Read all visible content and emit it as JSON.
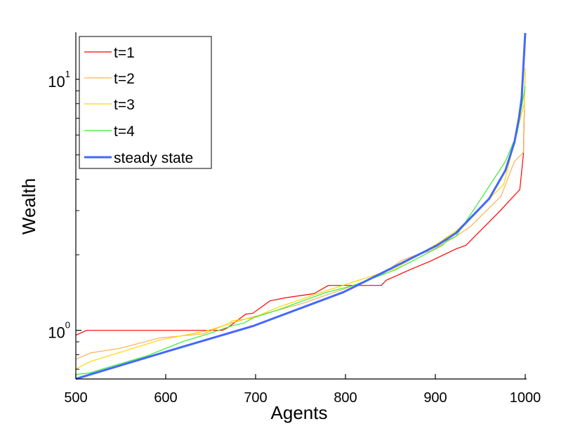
{
  "chart_data": {
    "type": "line",
    "title": "",
    "xlabel": "Agents",
    "ylabel": "Wealth",
    "xlim": [
      500,
      1000
    ],
    "ylim": [
      0.64,
      15.4
    ],
    "yscale": "log",
    "grid": false,
    "legend_position": "top-left",
    "x_ticks": [
      500,
      600,
      700,
      800,
      900,
      1000
    ],
    "x_tick_labels": [
      "500",
      "600",
      "700",
      "800",
      "900",
      "1000"
    ],
    "y_major_ticks": [
      {
        "value": 1,
        "base": "10",
        "exp": "0"
      },
      {
        "value": 10,
        "base": "10",
        "exp": "1"
      }
    ],
    "y_minor_ticks": [
      0.7,
      0.8,
      0.9,
      2,
      3,
      4,
      5,
      6,
      7,
      8,
      9
    ],
    "series": [
      {
        "name": "t=1",
        "color": "#ff0000",
        "width": 1.2,
        "points": [
          [
            500,
            0.956
          ],
          [
            512,
            1.0
          ],
          [
            663,
            1.0
          ],
          [
            668,
            1.02
          ],
          [
            673,
            1.05
          ],
          [
            689,
            1.16
          ],
          [
            697,
            1.17
          ],
          [
            716,
            1.31
          ],
          [
            734,
            1.35
          ],
          [
            765,
            1.4
          ],
          [
            781,
            1.51
          ],
          [
            840,
            1.51
          ],
          [
            845,
            1.58
          ],
          [
            871,
            1.74
          ],
          [
            895,
            1.89
          ],
          [
            923,
            2.11
          ],
          [
            934,
            2.18
          ],
          [
            970,
            2.94
          ],
          [
            994,
            3.64
          ],
          [
            998,
            5.02
          ],
          [
            999,
            7.53
          ]
        ]
      },
      {
        "name": "t=2",
        "color": "#ffb050",
        "width": 1.2,
        "points": [
          [
            500,
            0.768
          ],
          [
            517,
            0.814
          ],
          [
            548,
            0.846
          ],
          [
            593,
            0.932
          ],
          [
            642,
            0.968
          ],
          [
            666,
            1.05
          ],
          [
            673,
            1.07
          ],
          [
            697,
            1.13
          ],
          [
            752,
            1.28
          ],
          [
            798,
            1.46
          ],
          [
            840,
            1.66
          ],
          [
            861,
            1.89
          ],
          [
            882,
            2.02
          ],
          [
            895,
            2.07
          ],
          [
            923,
            2.37
          ],
          [
            939,
            2.59
          ],
          [
            973,
            3.42
          ],
          [
            988,
            4.71
          ],
          [
            998,
            5.12
          ],
          [
            999,
            7.53
          ],
          [
            1000,
            10.9
          ]
        ]
      },
      {
        "name": "t=3",
        "color": "#ffd700",
        "width": 1.2,
        "points": [
          [
            500,
            0.702
          ],
          [
            517,
            0.753
          ],
          [
            548,
            0.814
          ],
          [
            593,
            0.914
          ],
          [
            645,
            0.994
          ],
          [
            671,
            1.06
          ],
          [
            673,
            1.09
          ],
          [
            697,
            1.12
          ],
          [
            726,
            1.24
          ],
          [
            777,
            1.43
          ],
          [
            814,
            1.58
          ],
          [
            855,
            1.76
          ],
          [
            908,
            2.28
          ],
          [
            910,
            2.32
          ],
          [
            923,
            2.48
          ],
          [
            939,
            2.82
          ],
          [
            976,
            3.81
          ],
          [
            988,
            5.61
          ],
          [
            999,
            8.04
          ],
          [
            1000,
            11.1
          ]
        ]
      },
      {
        "name": "t=4",
        "color": "#33ee33",
        "width": 1.2,
        "points": [
          [
            500,
            0.667
          ],
          [
            515,
            0.676
          ],
          [
            541,
            0.721
          ],
          [
            580,
            0.793
          ],
          [
            619,
            0.902
          ],
          [
            645,
            0.962
          ],
          [
            673,
            1.04
          ],
          [
            687,
            1.07
          ],
          [
            697,
            1.12
          ],
          [
            726,
            1.21
          ],
          [
            777,
            1.41
          ],
          [
            809,
            1.51
          ],
          [
            855,
            1.74
          ],
          [
            908,
            2.18
          ],
          [
            913,
            2.28
          ],
          [
            923,
            2.37
          ],
          [
            949,
            3.27
          ],
          [
            978,
            4.71
          ],
          [
            991,
            6.1
          ],
          [
            1000,
            9.38
          ]
        ]
      },
      {
        "name": "steady state",
        "color": "#4466ff",
        "width": 3,
        "points": [
          [
            500,
            0.641
          ],
          [
            599,
            0.819
          ],
          [
            673,
            0.981
          ],
          [
            697,
            1.04
          ],
          [
            798,
            1.42
          ],
          [
            902,
            2.18
          ],
          [
            923,
            2.44
          ],
          [
            960,
            3.35
          ],
          [
            978,
            4.34
          ],
          [
            988,
            5.61
          ],
          [
            993,
            7.0
          ],
          [
            996,
            8.41
          ],
          [
            1000,
            15.3
          ]
        ]
      }
    ]
  }
}
